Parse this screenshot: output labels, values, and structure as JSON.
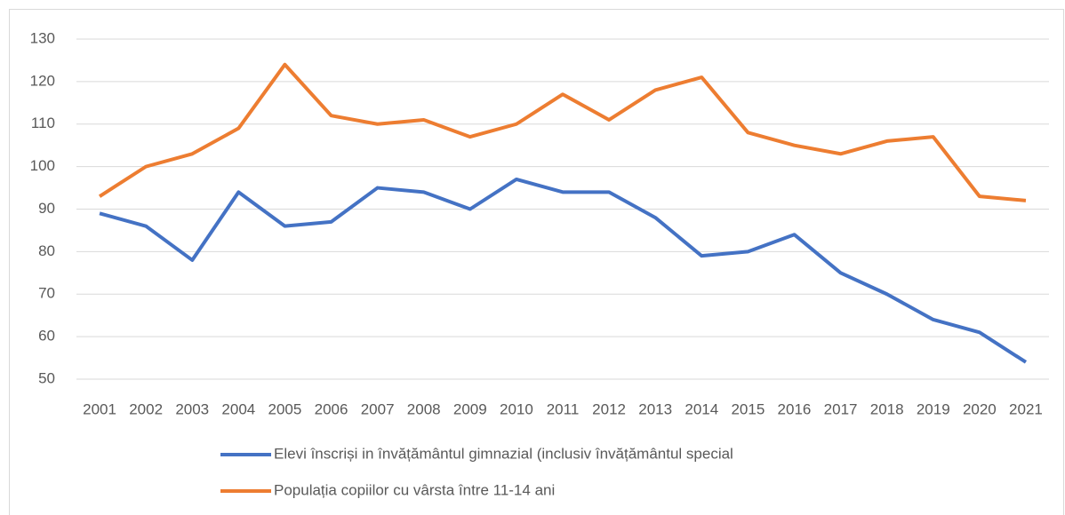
{
  "chart_data": {
    "type": "line",
    "categories": [
      "2001",
      "2002",
      "2003",
      "2004",
      "2005",
      "2006",
      "2007",
      "2008",
      "2009",
      "2010",
      "2011",
      "2012",
      "2013",
      "2014",
      "2015",
      "2016",
      "2017",
      "2018",
      "2019",
      "2020",
      "2021"
    ],
    "series": [
      {
        "name": "Elevi înscriși in învățământul gimnazial (inclusiv învățământul special",
        "color": "#4472c4",
        "values": [
          89,
          86,
          78,
          94,
          86,
          87,
          95,
          94,
          90,
          97,
          94,
          94,
          88,
          79,
          80,
          84,
          75,
          70,
          64,
          61,
          54
        ]
      },
      {
        "name": "Populația copiilor cu vârsta între 11-14 ani",
        "color": "#ed7d31",
        "values": [
          93,
          100,
          103,
          109,
          124,
          112,
          110,
          111,
          107,
          110,
          117,
          111,
          118,
          121,
          108,
          105,
          103,
          106,
          107,
          93,
          92
        ]
      }
    ],
    "ylim": [
      50,
      130
    ],
    "yticks": [
      50,
      60,
      70,
      80,
      90,
      100,
      110,
      120,
      130
    ],
    "grid": true,
    "legend": "bottom"
  }
}
